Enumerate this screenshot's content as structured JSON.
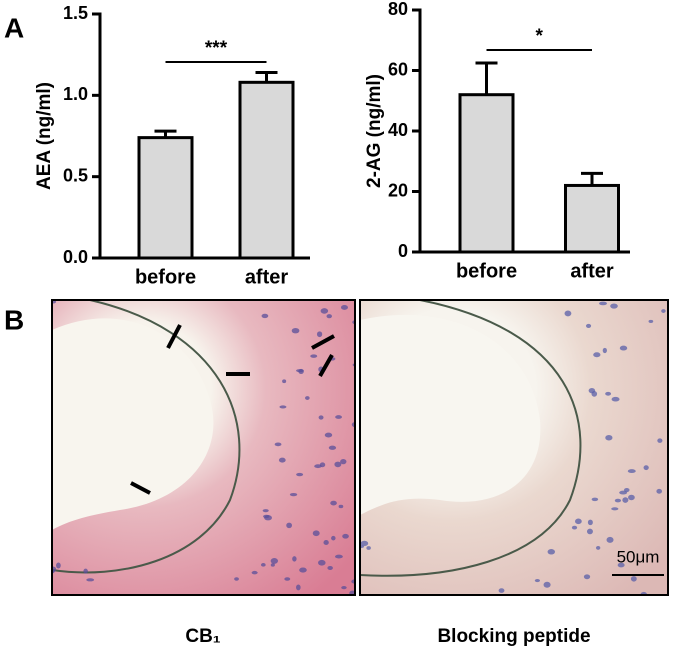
{
  "panels": [
    "A",
    "B"
  ],
  "chart_data": [
    {
      "type": "bar",
      "ylabel": "AEA (ng/ml)",
      "categories": [
        "before",
        "after"
      ],
      "values": [
        0.74,
        1.08
      ],
      "errors": [
        0.04,
        0.06
      ],
      "color": "#d9d9d9",
      "ylim": [
        0,
        1.5
      ],
      "yticks": [
        {
          "value": 0,
          "label": "0.0"
        },
        0.5,
        {
          "value": 1,
          "label": "1.0"
        },
        1.5
      ],
      "significance": "***"
    },
    {
      "type": "bar",
      "ylabel": "2-AG (ng/ml)",
      "categories": [
        "before",
        "after"
      ],
      "values": [
        52,
        22
      ],
      "errors": [
        10.5,
        4
      ],
      "color": "#d9d9d9",
      "ylim": [
        0,
        80
      ],
      "yticks": [
        0,
        20,
        40,
        60,
        80
      ],
      "significance": "*"
    }
  ],
  "images": [
    {
      "caption": "CB₁"
    },
    {
      "caption": "Blocking peptide",
      "scale_bar": "50μm"
    }
  ]
}
